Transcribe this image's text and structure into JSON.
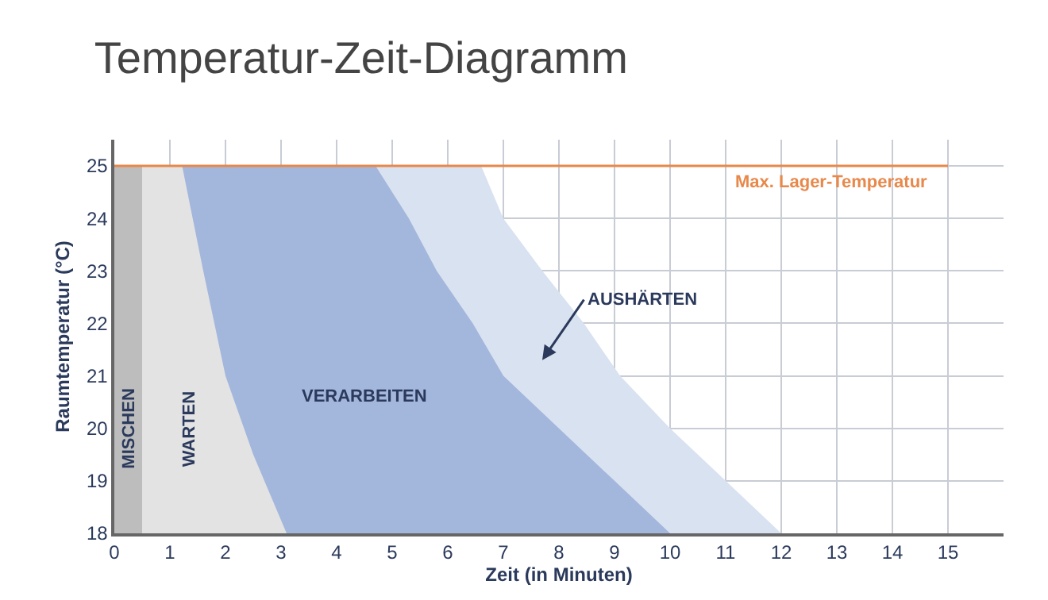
{
  "chart_data": {
    "type": "area",
    "title": "Temperatur-Zeit-Diagramm",
    "xlabel": "Zeit (in Minuten)",
    "ylabel": "Raumtemperatur (°C)",
    "series": [
      {
        "name": "AUSHÄRTEN",
        "color": "#d9e2f1",
        "x": [
          0,
          6.6,
          7.0,
          7.7,
          8.45,
          9.1,
          10.0,
          11.0,
          12.0
        ],
        "values": [
          25,
          25,
          24,
          23,
          22,
          21,
          20,
          19,
          18
        ]
      },
      {
        "name": "VERARBEITEN",
        "color": "#a3b6dc",
        "x": [
          0,
          4.7,
          5.3,
          5.8,
          6.45,
          7.0,
          8.0,
          9.0,
          10.0
        ],
        "values": [
          25,
          25,
          24,
          23,
          22,
          21,
          20,
          19,
          18
        ]
      },
      {
        "name": "WARTEN",
        "color": "#e3e3e3",
        "x": [
          0,
          1.22,
          1.6,
          2.0,
          2.5,
          3.1
        ],
        "values": [
          25,
          25,
          23,
          21,
          19.5,
          18
        ]
      },
      {
        "name": "MISCHEN",
        "color": "#bdbdbd",
        "x": [
          0,
          0.5
        ],
        "values": [
          25,
          25
        ]
      }
    ],
    "xlim": [
      0,
      16
    ],
    "xticks": [
      0,
      1,
      2,
      3,
      4,
      5,
      6,
      7,
      8,
      9,
      10,
      11,
      12,
      13,
      14,
      15
    ],
    "ylim": [
      18,
      25.5
    ],
    "yticks": [
      18,
      19,
      20,
      21,
      22,
      23,
      24,
      25
    ],
    "ref_lines": [
      {
        "axis": "y",
        "value": 25,
        "label": "Max. Lager-Temperatur",
        "color": "#e8884a"
      }
    ],
    "grid": true
  }
}
